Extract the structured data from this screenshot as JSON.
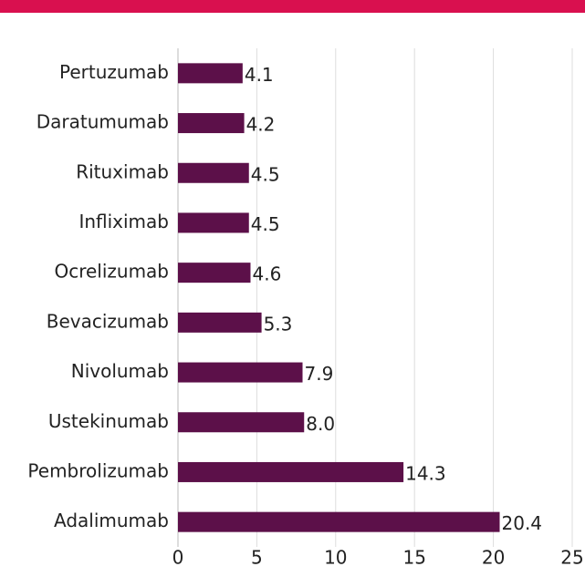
{
  "chart_data": {
    "type": "bar",
    "orientation": "horizontal",
    "categories": [
      "Pertuzumab",
      "Daratumumab",
      "Rituximab",
      "Infliximab",
      "Ocrelizumab",
      "Bevacizumab",
      "Nivolumab",
      "Ustekinumab",
      "Pembrolizumab",
      "Adalimumab"
    ],
    "values": [
      4.1,
      4.2,
      4.5,
      4.5,
      4.6,
      5.3,
      7.9,
      8.0,
      14.3,
      20.4
    ],
    "value_labels": [
      "4.1",
      "4.2",
      "4.5",
      "4.5",
      "4.6",
      "5.3",
      "7.9",
      "8.0",
      "14.3",
      "20.4"
    ],
    "color": "#5c1049",
    "xlim": [
      0,
      25
    ],
    "xticks": [
      0,
      5,
      10,
      15,
      20,
      25
    ],
    "grid": true
  }
}
